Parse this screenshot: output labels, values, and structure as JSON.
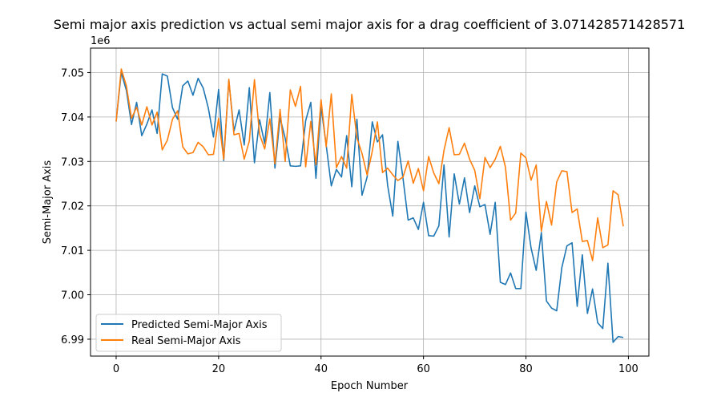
{
  "chart_data": {
    "type": "line",
    "title": "Semi major axis prediction vs actual semi major axis for a drag coefficient of 3.071428571428571",
    "xlabel": "Epoch Number",
    "ylabel": "Semi-Major Axis",
    "y_offset_label": "1e6",
    "xlim": [
      -5,
      104
    ],
    "ylim": [
      6.9862,
      7.0555
    ],
    "x_ticks": [
      0,
      20,
      40,
      60,
      80,
      100
    ],
    "y_ticks": [
      6.99,
      7.0,
      7.01,
      7.02,
      7.03,
      7.04,
      7.05
    ],
    "y_tick_labels": [
      "6.99",
      "7.00",
      "7.01",
      "7.02",
      "7.03",
      "7.04",
      "7.05"
    ],
    "grid": true,
    "legend_position": "lower-left",
    "series": [
      {
        "name": "Predicted Semi-Major Axis",
        "color": "#1f77b4",
        "values": [
          7.039,
          7.05,
          7.046,
          7.0383,
          7.0433,
          7.0358,
          7.0384,
          7.0416,
          7.0363,
          7.0497,
          7.0492,
          7.0421,
          7.0395,
          7.047,
          7.0481,
          7.0449,
          7.0487,
          7.0465,
          7.042,
          7.0355,
          7.0462,
          7.0302,
          7.0482,
          7.0368,
          7.0416,
          7.0337,
          7.0466,
          7.0297,
          7.0394,
          7.034,
          7.0455,
          7.0285,
          7.0398,
          7.0352,
          7.029,
          7.0289,
          7.029,
          7.0392,
          7.0433,
          7.0262,
          7.0423,
          7.0337,
          7.0245,
          7.0282,
          7.0265,
          7.0358,
          7.0243,
          7.0395,
          7.0224,
          7.0265,
          7.0389,
          7.0344,
          7.036,
          7.0246,
          7.0177,
          7.0345,
          7.0262,
          7.0168,
          7.0173,
          7.0147,
          7.0208,
          7.0133,
          7.0132,
          7.0155,
          7.0292,
          7.013,
          7.0272,
          7.0204,
          7.0263,
          7.0185,
          7.0245,
          7.0198,
          7.0203,
          7.0136,
          7.0208,
          7.0028,
          7.0023,
          7.0049,
          7.0014,
          7.0014,
          7.0186,
          7.0105,
          7.0055,
          7.014,
          6.9986,
          6.997,
          6.9964,
          7.0061,
          7.011,
          7.0117,
          6.9974,
          7.009,
          6.9958,
          7.0013,
          6.9937,
          6.9924,
          7.0071,
          6.9893,
          6.9906,
          6.9904
        ]
      },
      {
        "name": "Real Semi-Major Axis",
        "color": "#ff7f0e",
        "values": [
          7.039,
          7.0508,
          7.047,
          7.0397,
          7.0422,
          7.0382,
          7.0423,
          7.0382,
          7.0411,
          7.0326,
          7.0348,
          7.0395,
          7.0414,
          7.0333,
          7.0317,
          7.032,
          7.0343,
          7.0333,
          7.0315,
          7.0316,
          7.0397,
          7.0305,
          7.0485,
          7.036,
          7.0363,
          7.0305,
          7.0346,
          7.0484,
          7.0361,
          7.0328,
          7.0396,
          7.0295,
          7.0417,
          7.03,
          7.0461,
          7.0424,
          7.0469,
          7.0288,
          7.039,
          7.0293,
          7.0439,
          7.0333,
          7.0452,
          7.0286,
          7.0311,
          7.0285,
          7.0451,
          7.0353,
          7.0318,
          7.0269,
          7.0323,
          7.0389,
          7.0275,
          7.0285,
          7.027,
          7.0257,
          7.0265,
          7.0301,
          7.0251,
          7.0284,
          7.0234,
          7.0311,
          7.0274,
          7.025,
          7.0325,
          7.0376,
          7.0315,
          7.0316,
          7.0341,
          7.0305,
          7.028,
          7.0216,
          7.0309,
          7.0286,
          7.0305,
          7.0334,
          7.0287,
          7.0168,
          7.0184,
          7.0319,
          7.0308,
          7.0258,
          7.0292,
          7.0143,
          7.021,
          7.0157,
          7.0254,
          7.0279,
          7.0277,
          7.0185,
          7.0193,
          7.012,
          7.0122,
          7.0077,
          7.0173,
          7.0106,
          7.0112,
          7.0234,
          7.0225,
          7.0154
        ]
      }
    ]
  }
}
